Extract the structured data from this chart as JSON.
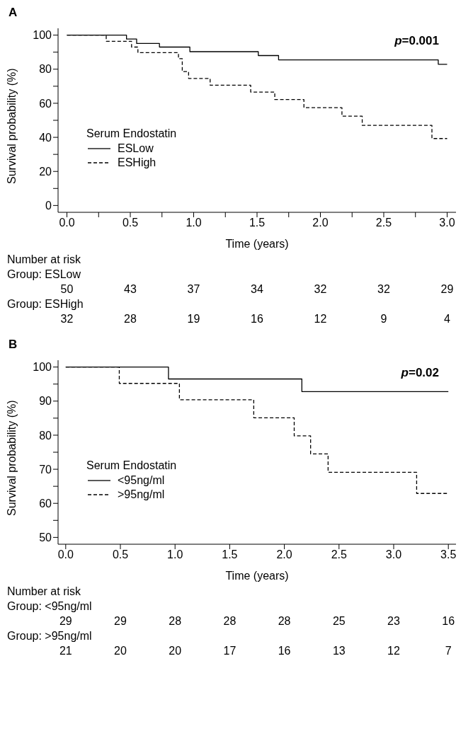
{
  "chart_data": [
    {
      "type": "step",
      "title": "A",
      "xlabel": "Time (years)",
      "ylabel": "Survival probability (%)",
      "legend_title": "Serum Endostatin",
      "legend": "bottom left",
      "xlim": [
        -0.07,
        3.07
      ],
      "xticks": [
        {
          "value": 0,
          "label": "0.0"
        },
        {
          "value": 0.25,
          "label": null
        },
        {
          "value": 0.5,
          "label": "0.5"
        },
        {
          "value": 0.75,
          "label": null
        },
        {
          "value": 1,
          "label": "1.0"
        },
        {
          "value": 1.25,
          "label": null
        },
        {
          "value": 1.5,
          "label": "1.5"
        },
        {
          "value": 1.75,
          "label": null
        },
        {
          "value": 2,
          "label": "2.0"
        },
        {
          "value": 2.25,
          "label": null
        },
        {
          "value": 2.5,
          "label": "2.5"
        },
        {
          "value": 2.75,
          "label": null
        },
        {
          "value": 3,
          "label": "3.0"
        }
      ],
      "ylim": [
        -4,
        104
      ],
      "yticks": [
        0,
        {
          "value": 10,
          "label": null
        },
        20,
        {
          "value": 30,
          "label": null
        },
        40,
        {
          "value": 50,
          "label": null
        },
        60,
        {
          "value": 70,
          "label": null
        },
        80,
        {
          "value": 90,
          "label": null
        },
        100
      ],
      "series": [
        {
          "name": "ESLow",
          "color": "#000000",
          "line_style": "solid",
          "x": [
            0,
            0.47,
            0.55,
            0.73,
            0.97,
            1.51,
            1.67,
            2.93,
            3.0
          ],
          "values": [
            100,
            97.7,
            95.1,
            93.0,
            90.3,
            88.0,
            85.5,
            82.9,
            82.9
          ]
        },
        {
          "name": "ESHigh",
          "color": "#000000",
          "line_style": "dashed",
          "x": [
            0,
            0.31,
            0.51,
            0.56,
            0.88,
            0.91,
            0.96,
            1.13,
            1.45,
            1.64,
            1.87,
            2.17,
            2.33,
            2.88,
            3.0
          ],
          "values": [
            100,
            96.4,
            93.0,
            89.7,
            86.2,
            78.6,
            74.6,
            70.6,
            66.6,
            62.2,
            57.4,
            52.4,
            47.0,
            39.3,
            39.3
          ]
        }
      ],
      "annotations": [
        "p=0.001",
        "Number at risk",
        "Group: ESLow",
        "50",
        "43",
        "37",
        "34",
        "32",
        "32",
        "29",
        "Group: ESHigh",
        "32",
        "28",
        "19",
        "16",
        "12",
        "9",
        "4"
      ]
    },
    {
      "type": "step",
      "title": "B",
      "xlabel": "Time (years)",
      "ylabel": "Survival probability (%)",
      "legend_title": "Serum Endostatin",
      "legend": "bottom left",
      "xlim": [
        -0.07,
        3.57
      ],
      "xticks": [
        {
          "value": 0,
          "label": "0.0"
        },
        {
          "value": 0.5,
          "label": "0.5"
        },
        {
          "value": 1,
          "label": "1.0"
        },
        {
          "value": 1.5,
          "label": "1.5"
        },
        {
          "value": 2,
          "label": "2.0"
        },
        {
          "value": 2.5,
          "label": "2.5"
        },
        {
          "value": 3,
          "label": "3.0"
        },
        {
          "value": 3.5,
          "label": "3.5"
        }
      ],
      "ylim": [
        48,
        102
      ],
      "yticks": [
        50,
        {
          "value": 55,
          "label": null
        },
        60,
        {
          "value": 65,
          "label": null
        },
        70,
        {
          "value": 75,
          "label": null
        },
        80,
        {
          "value": 85,
          "label": null
        },
        90,
        {
          "value": 95,
          "label": null
        },
        100
      ],
      "series": [
        {
          "name": "<95ng/ml",
          "color": "#000000",
          "line_style": "solid",
          "x": [
            0,
            0.94,
            2.16,
            3.5
          ],
          "values": [
            100,
            96.5,
            92.8,
            92.8
          ]
        },
        {
          "name": ">95ng/ml",
          "color": "#000000",
          "line_style": "dashed",
          "x": [
            0,
            0.49,
            1.04,
            1.72,
            2.09,
            2.24,
            2.4,
            3.21,
            3.5
          ],
          "values": [
            100,
            95.2,
            90.4,
            85.1,
            79.8,
            74.5,
            69.1,
            62.9,
            62.9
          ]
        }
      ],
      "annotations": [
        "p=0.02",
        "Number at risk",
        "Group: <95ng/ml",
        "29",
        "29",
        "28",
        "28",
        "28",
        "25",
        "23",
        "16",
        "Group: >95ng/ml",
        "21",
        "20",
        "20",
        "17",
        "16",
        "13",
        "12",
        "7"
      ]
    }
  ]
}
